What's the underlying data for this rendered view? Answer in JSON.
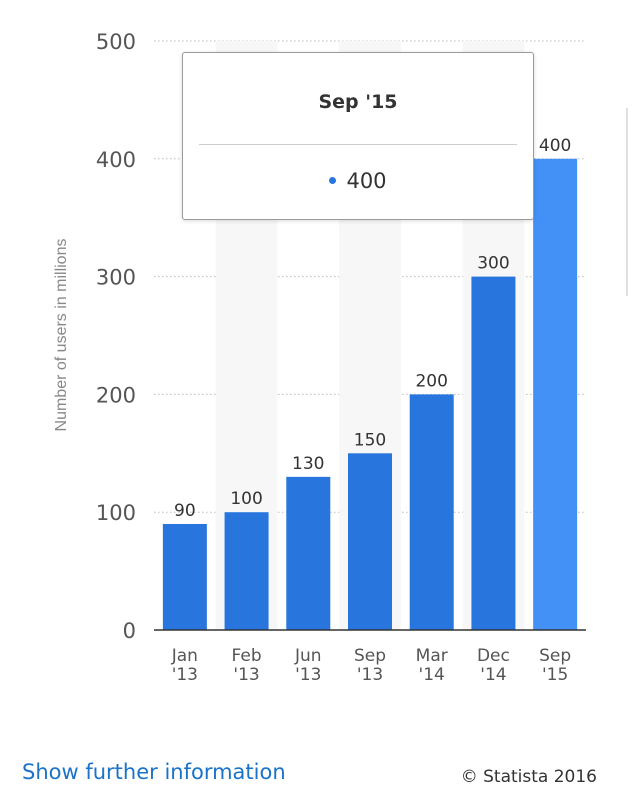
{
  "chart_data": {
    "type": "bar",
    "categories": [
      "Jan '13",
      "Feb '13",
      "Jun '13",
      "Sep '13",
      "Mar '14",
      "Dec '14",
      "Sep '15"
    ],
    "values": [
      90,
      100,
      130,
      150,
      200,
      300,
      400
    ],
    "title": "",
    "xlabel": "",
    "ylabel": "Number of users in millions",
    "ylim": [
      0,
      500
    ],
    "yticks": [
      0,
      100,
      200,
      300,
      400,
      500
    ],
    "grid": true,
    "bar_color": "#2876dd",
    "highlight_color": "#4391f7",
    "highlighted_index": 6
  },
  "tooltip": {
    "title": "Sep '15",
    "value": "400",
    "dot_color": "#2876dd"
  },
  "footer": {
    "link_text": "Show further information",
    "copyright": "© Statista 2016"
  }
}
